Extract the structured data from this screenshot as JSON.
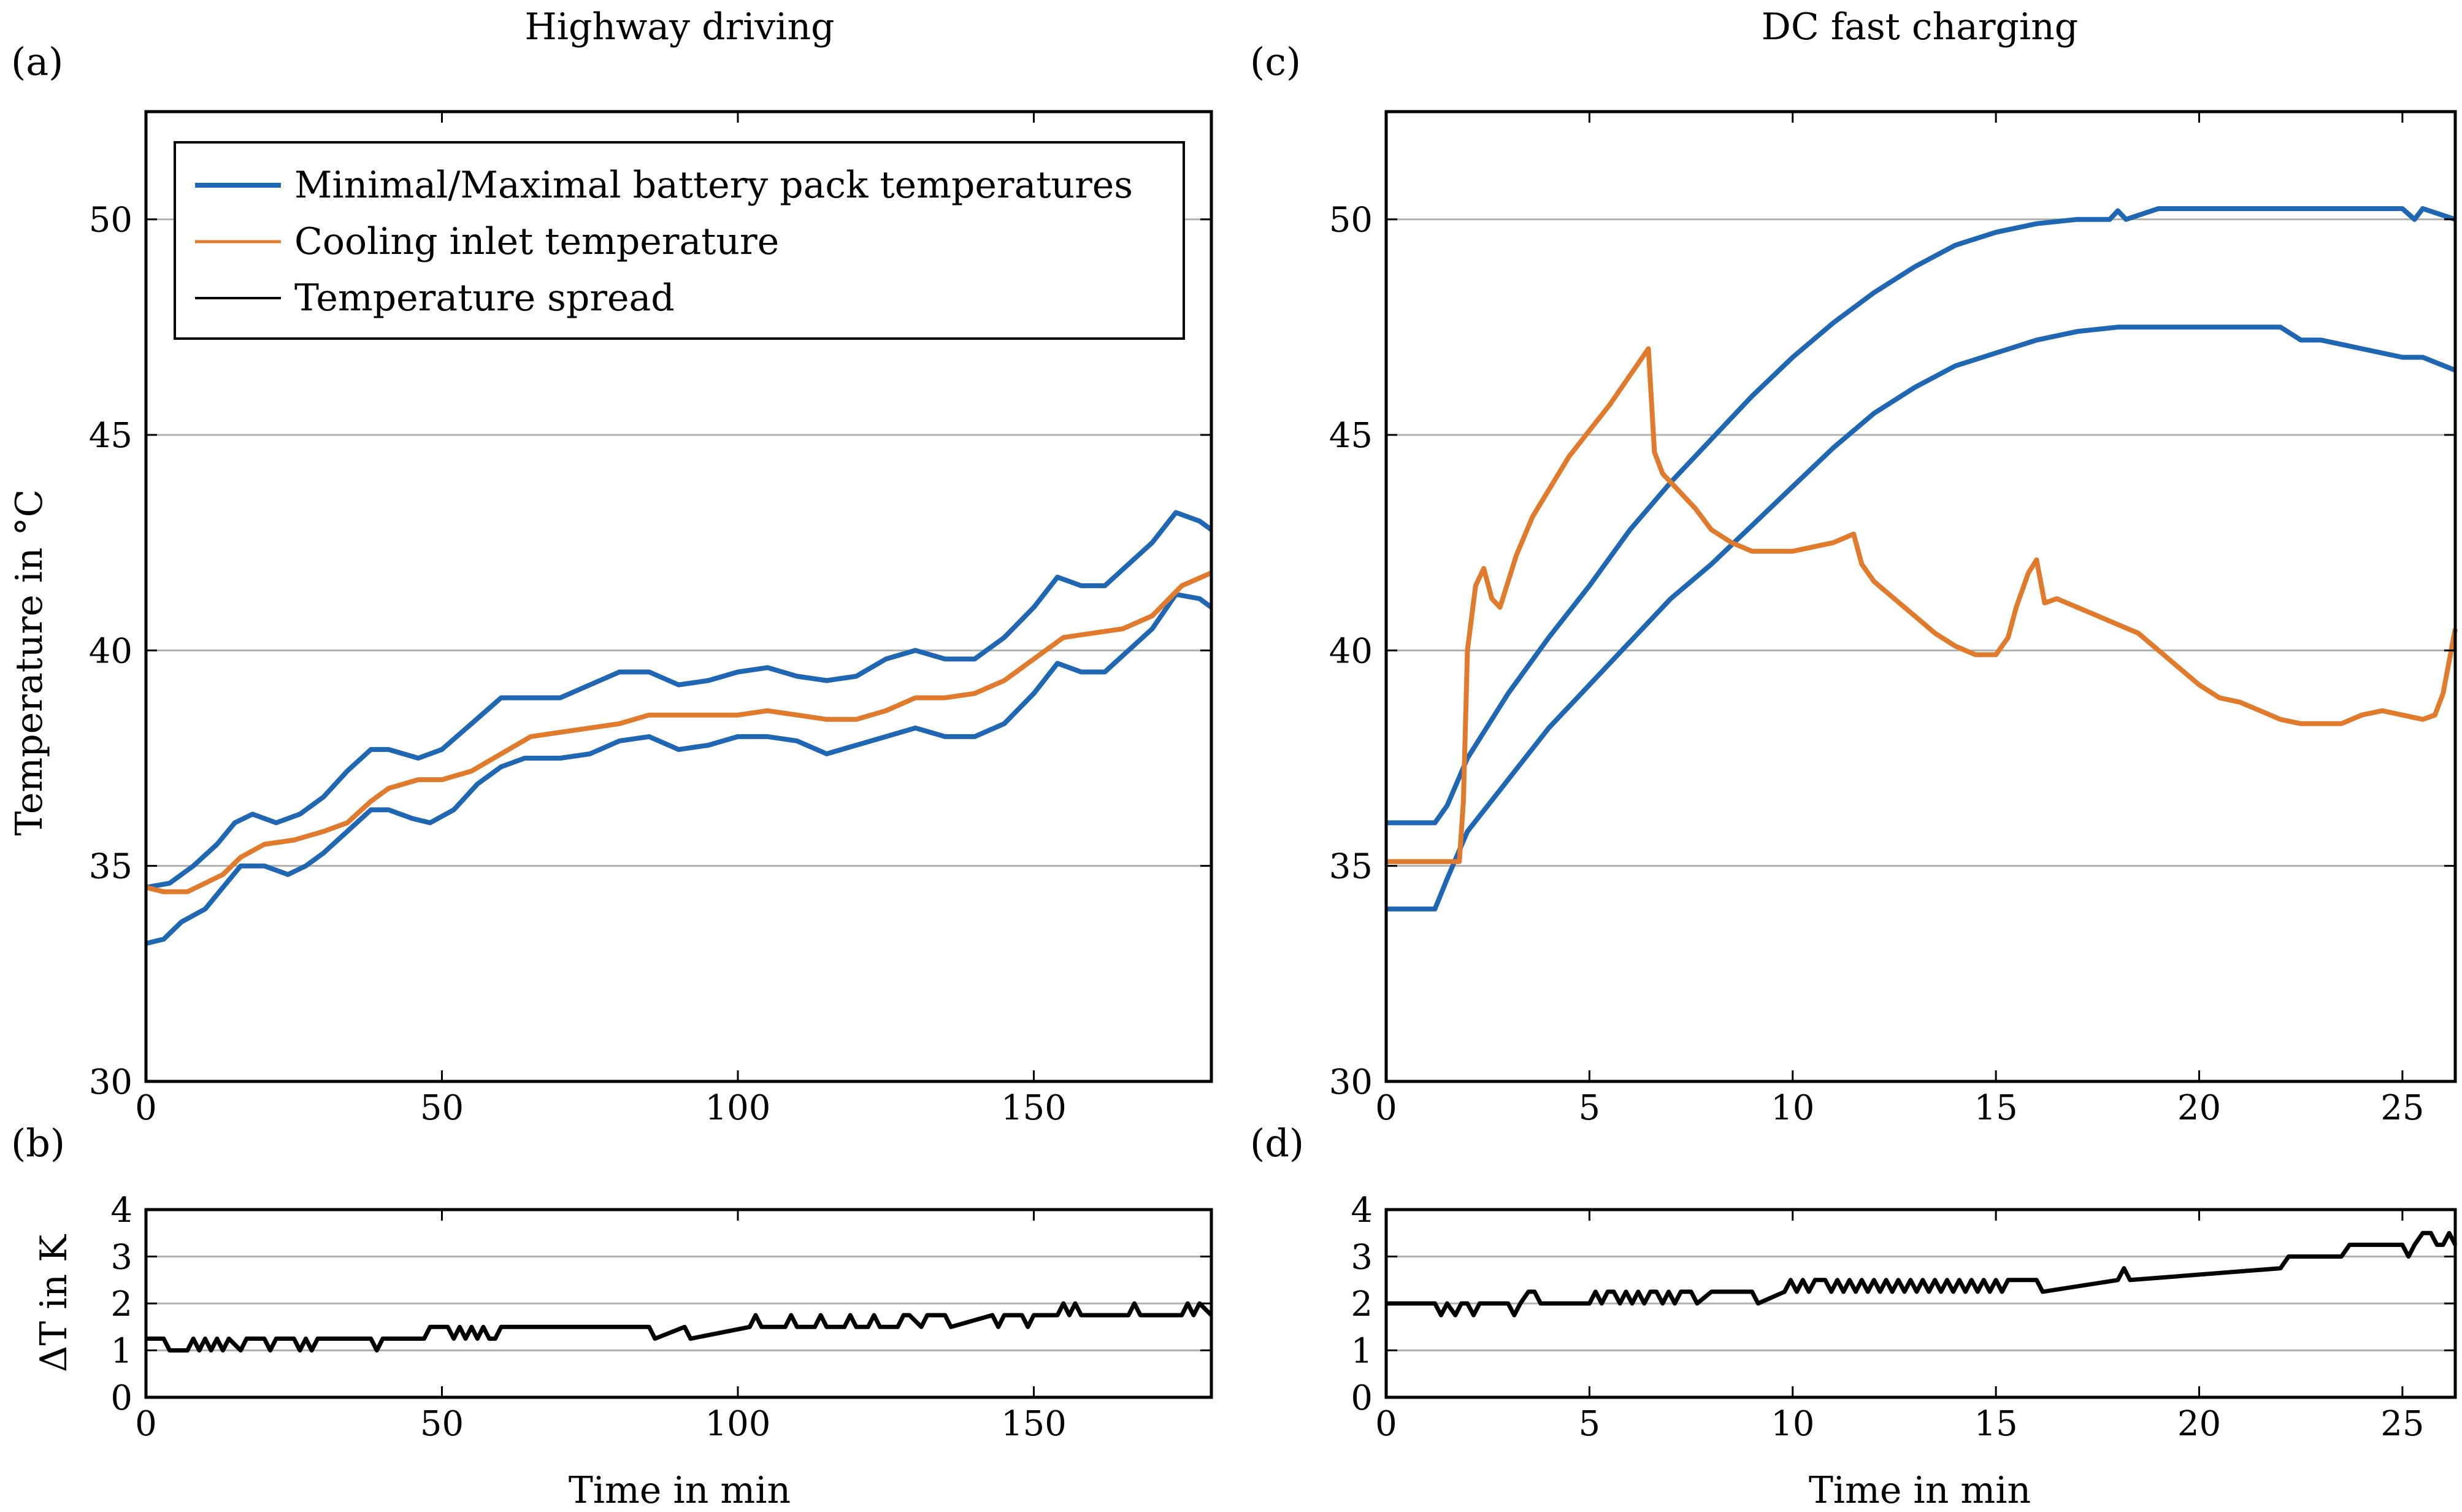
{
  "colors": {
    "blue": "#1f66b3",
    "orange": "#e07b2e",
    "black": "#000000",
    "grid": "#b0b0b0"
  },
  "chart_data": [
    {
      "id": "a",
      "panel_label": "(a)",
      "type": "line",
      "title": "Highway driving",
      "xlabel": "",
      "ylabel": "Temperature in °C",
      "xlim": [
        0,
        180
      ],
      "ylim": [
        30,
        52.5
      ],
      "xticks": [
        0,
        50,
        100,
        150
      ],
      "yticks": [
        30,
        35,
        40,
        45,
        50
      ],
      "grid": "horizontal",
      "legend_position": "top-left",
      "legend": [
        "Minimal/Maximal battery pack temperatures",
        "Cooling inlet temperature",
        "Temperature spread"
      ],
      "series": [
        {
          "name": "Maximal battery pack temperature",
          "color": "blue",
          "x": [
            0,
            4,
            8,
            12,
            15,
            18,
            22,
            26,
            30,
            34,
            38,
            41,
            46,
            50,
            55,
            60,
            64,
            70,
            75,
            80,
            85,
            90,
            95,
            100,
            105,
            110,
            115,
            120,
            125,
            130,
            135,
            140,
            145,
            150,
            154,
            158,
            162,
            166,
            170,
            174,
            178,
            180
          ],
          "y": [
            34.5,
            34.6,
            35.0,
            35.5,
            36.0,
            36.2,
            36.0,
            36.2,
            36.6,
            37.2,
            37.7,
            37.7,
            37.5,
            37.7,
            38.3,
            38.9,
            38.9,
            38.9,
            39.2,
            39.5,
            39.5,
            39.2,
            39.3,
            39.5,
            39.6,
            39.4,
            39.3,
            39.4,
            39.8,
            40.0,
            39.8,
            39.8,
            40.3,
            41.0,
            41.7,
            41.5,
            41.5,
            42.0,
            42.5,
            43.2,
            43.0,
            42.8
          ]
        },
        {
          "name": "Minimal battery pack temperature",
          "color": "blue",
          "x": [
            0,
            3,
            6,
            10,
            13,
            16,
            20,
            24,
            27,
            30,
            34,
            38,
            41,
            45,
            48,
            52,
            56,
            60,
            64,
            70,
            75,
            80,
            85,
            90,
            95,
            100,
            105,
            110,
            115,
            120,
            125,
            130,
            135,
            140,
            145,
            150,
            154,
            158,
            162,
            166,
            170,
            174,
            178,
            180
          ],
          "y": [
            33.2,
            33.3,
            33.7,
            34.0,
            34.5,
            35.0,
            35.0,
            34.8,
            35.0,
            35.3,
            35.8,
            36.3,
            36.3,
            36.1,
            36.0,
            36.3,
            36.9,
            37.3,
            37.5,
            37.5,
            37.6,
            37.9,
            38.0,
            37.7,
            37.8,
            38.0,
            38.0,
            37.9,
            37.6,
            37.8,
            38.0,
            38.2,
            38.0,
            38.0,
            38.3,
            39.0,
            39.7,
            39.5,
            39.5,
            40.0,
            40.5,
            41.3,
            41.2,
            41.0
          ]
        },
        {
          "name": "Cooling inlet temperature",
          "color": "orange",
          "x": [
            0,
            3,
            7,
            10,
            13,
            16,
            20,
            25,
            30,
            34,
            38,
            41,
            46,
            50,
            55,
            60,
            65,
            70,
            75,
            80,
            85,
            90,
            95,
            100,
            105,
            110,
            115,
            120,
            125,
            130,
            135,
            140,
            145,
            150,
            155,
            160,
            165,
            170,
            175,
            180
          ],
          "y": [
            34.5,
            34.4,
            34.4,
            34.6,
            34.8,
            35.2,
            35.5,
            35.6,
            35.8,
            36.0,
            36.5,
            36.8,
            37.0,
            37.0,
            37.2,
            37.6,
            38.0,
            38.1,
            38.2,
            38.3,
            38.5,
            38.5,
            38.5,
            38.5,
            38.6,
            38.5,
            38.4,
            38.4,
            38.6,
            38.9,
            38.9,
            39.0,
            39.3,
            39.8,
            40.3,
            40.4,
            40.5,
            40.8,
            41.5,
            41.8
          ]
        }
      ]
    },
    {
      "id": "b",
      "panel_label": "(b)",
      "type": "line",
      "title": "",
      "xlabel": "Time in min",
      "ylabel": "ΔT in K",
      "xlim": [
        0,
        180
      ],
      "ylim": [
        0,
        4
      ],
      "xticks": [
        0,
        50,
        100,
        150
      ],
      "yticks": [
        0,
        1,
        2,
        3,
        4
      ],
      "grid": "horizontal",
      "series": [
        {
          "name": "Temperature spread",
          "color": "black",
          "x": [
            0,
            3,
            4,
            7,
            8,
            9,
            10,
            11,
            12,
            13,
            14,
            16,
            17,
            20,
            21,
            22,
            25,
            26,
            27,
            28,
            29,
            32,
            38,
            39,
            40,
            47,
            48,
            51,
            52,
            53,
            54,
            55,
            56,
            57,
            58,
            59,
            60,
            85,
            86,
            91,
            92,
            102,
            103,
            104,
            108,
            109,
            110,
            113,
            114,
            115,
            118,
            119,
            120,
            122,
            123,
            124,
            127,
            128,
            129,
            131,
            132,
            133,
            135,
            136,
            143,
            144,
            145,
            148,
            149,
            150,
            154,
            155,
            156,
            157,
            158,
            166,
            167,
            168,
            175,
            176,
            177,
            178,
            180
          ],
          "y": [
            1.25,
            1.25,
            1.0,
            1.0,
            1.25,
            1.0,
            1.25,
            1.0,
            1.25,
            1.0,
            1.25,
            1.0,
            1.25,
            1.25,
            1.0,
            1.25,
            1.25,
            1.0,
            1.25,
            1.0,
            1.25,
            1.25,
            1.25,
            1.0,
            1.25,
            1.25,
            1.5,
            1.5,
            1.25,
            1.5,
            1.25,
            1.5,
            1.25,
            1.5,
            1.25,
            1.25,
            1.5,
            1.5,
            1.25,
            1.5,
            1.25,
            1.5,
            1.75,
            1.5,
            1.5,
            1.75,
            1.5,
            1.5,
            1.75,
            1.5,
            1.5,
            1.75,
            1.5,
            1.5,
            1.75,
            1.5,
            1.5,
            1.75,
            1.75,
            1.5,
            1.75,
            1.75,
            1.75,
            1.5,
            1.75,
            1.5,
            1.75,
            1.75,
            1.5,
            1.75,
            1.75,
            2.0,
            1.75,
            2.0,
            1.75,
            1.75,
            2.0,
            1.75,
            1.75,
            2.0,
            1.75,
            2.0,
            1.75
          ]
        }
      ]
    },
    {
      "id": "c",
      "panel_label": "(c)",
      "type": "line",
      "title": "DC fast charging",
      "xlabel": "",
      "ylabel": "",
      "xlim": [
        0,
        26.3
      ],
      "ylim": [
        30,
        52.5
      ],
      "xticks": [
        0,
        5,
        10,
        15,
        20,
        25
      ],
      "yticks": [
        30,
        35,
        40,
        45,
        50
      ],
      "grid": "horizontal",
      "series": [
        {
          "name": "Maximal battery pack temperature",
          "color": "blue",
          "x": [
            0,
            1.2,
            1.5,
            2.0,
            3.0,
            4.0,
            5.0,
            6.0,
            7.0,
            8.0,
            9.0,
            10.0,
            11.0,
            12.0,
            13.0,
            14.0,
            15.0,
            16.0,
            17.0,
            17.8,
            18.0,
            18.2,
            19.0,
            20.0,
            21.0,
            22.0,
            23.0,
            24.0,
            25.0,
            25.3,
            25.5,
            26.3
          ],
          "y": [
            36.0,
            36.0,
            36.4,
            37.5,
            39.0,
            40.3,
            41.5,
            42.8,
            43.9,
            44.9,
            45.9,
            46.8,
            47.6,
            48.3,
            48.9,
            49.4,
            49.7,
            49.9,
            50.0,
            50.0,
            50.2,
            50.0,
            50.25,
            50.25,
            50.25,
            50.25,
            50.25,
            50.25,
            50.25,
            50.0,
            50.25,
            50.0
          ]
        },
        {
          "name": "Minimal battery pack temperature",
          "color": "blue",
          "x": [
            0,
            1.2,
            1.5,
            2.0,
            3.0,
            4.0,
            5.0,
            6.0,
            7.0,
            8.0,
            9.0,
            10.0,
            11.0,
            12.0,
            13.0,
            14.0,
            15.0,
            16.0,
            17.0,
            18.0,
            20.0,
            22.0,
            22.5,
            23.0,
            24.0,
            25.0,
            25.5,
            26.3
          ],
          "y": [
            34.0,
            34.0,
            34.7,
            35.8,
            37.0,
            38.2,
            39.2,
            40.2,
            41.2,
            42.0,
            42.9,
            43.8,
            44.7,
            45.5,
            46.1,
            46.6,
            46.9,
            47.2,
            47.4,
            47.5,
            47.5,
            47.5,
            47.2,
            47.2,
            47.0,
            46.8,
            46.8,
            46.5
          ]
        },
        {
          "name": "Cooling inlet temperature",
          "color": "orange",
          "x": [
            0,
            1.8,
            1.9,
            2.0,
            2.2,
            2.4,
            2.6,
            2.8,
            3.2,
            3.6,
            4.5,
            5.5,
            6.45,
            6.6,
            6.8,
            7.2,
            7.6,
            8.0,
            8.5,
            9.0,
            9.5,
            10.0,
            11.0,
            11.5,
            11.7,
            12.0,
            12.5,
            13.0,
            13.5,
            14.0,
            14.5,
            15.0,
            15.3,
            15.5,
            15.8,
            16.0,
            16.2,
            16.5,
            17.0,
            17.5,
            18.0,
            18.5,
            19.0,
            19.5,
            20.0,
            20.5,
            21.0,
            21.5,
            22.0,
            22.5,
            23.0,
            23.5,
            24.0,
            24.5,
            25.0,
            25.5,
            25.8,
            26.0,
            26.3
          ],
          "y": [
            35.1,
            35.1,
            36.5,
            40.0,
            41.5,
            41.9,
            41.2,
            41.0,
            42.2,
            43.1,
            44.5,
            45.7,
            47.0,
            44.6,
            44.1,
            43.7,
            43.3,
            42.8,
            42.5,
            42.3,
            42.3,
            42.3,
            42.5,
            42.7,
            42.0,
            41.6,
            41.2,
            40.8,
            40.4,
            40.1,
            39.9,
            39.9,
            40.3,
            41.0,
            41.8,
            42.1,
            41.1,
            41.2,
            41.0,
            40.8,
            40.6,
            40.4,
            40.0,
            39.6,
            39.2,
            38.9,
            38.8,
            38.6,
            38.4,
            38.3,
            38.3,
            38.3,
            38.5,
            38.6,
            38.5,
            38.4,
            38.5,
            39.0,
            40.5
          ]
        }
      ]
    },
    {
      "id": "d",
      "panel_label": "(d)",
      "type": "line",
      "title": "",
      "xlabel": "Time in min",
      "ylabel": "",
      "xlim": [
        0,
        26.3
      ],
      "ylim": [
        0,
        4
      ],
      "xticks": [
        0,
        5,
        10,
        15,
        20,
        25
      ],
      "yticks": [
        0,
        1,
        2,
        3,
        4
      ],
      "grid": "horizontal",
      "series": [
        {
          "name": "Temperature spread",
          "color": "black",
          "x": [
            0,
            1.2,
            1.35,
            1.5,
            1.7,
            1.85,
            2.0,
            2.15,
            2.3,
            2.5,
            3.0,
            3.15,
            3.3,
            3.5,
            3.65,
            3.8,
            5.0,
            5.15,
            5.3,
            5.45,
            5.6,
            5.75,
            5.9,
            6.05,
            6.2,
            6.35,
            6.5,
            6.65,
            6.8,
            6.95,
            7.1,
            7.25,
            7.5,
            7.65,
            8.0,
            9.0,
            9.15,
            9.8,
            9.95,
            10.1,
            10.25,
            10.4,
            10.55,
            10.8,
            10.95,
            11.1,
            11.25,
            11.4,
            11.55,
            11.7,
            11.85,
            12.0,
            12.15,
            12.3,
            12.45,
            12.6,
            12.75,
            12.9,
            13.05,
            13.2,
            13.35,
            13.5,
            13.65,
            13.8,
            13.95,
            14.1,
            14.25,
            14.4,
            14.55,
            14.7,
            14.85,
            15.0,
            15.15,
            15.3,
            15.45,
            16.0,
            16.15,
            18.0,
            18.15,
            18.3,
            22.0,
            22.2,
            23.5,
            23.7,
            25.0,
            25.15,
            25.3,
            25.5,
            25.7,
            25.85,
            26.0,
            26.15,
            26.3
          ],
          "y": [
            2.0,
            2.0,
            1.75,
            2.0,
            1.75,
            2.0,
            2.0,
            1.75,
            2.0,
            2.0,
            2.0,
            1.75,
            2.0,
            2.25,
            2.25,
            2.0,
            2.0,
            2.25,
            2.0,
            2.25,
            2.25,
            2.0,
            2.25,
            2.0,
            2.25,
            2.0,
            2.25,
            2.25,
            2.0,
            2.25,
            2.0,
            2.25,
            2.25,
            2.0,
            2.25,
            2.25,
            2.0,
            2.25,
            2.5,
            2.25,
            2.5,
            2.25,
            2.5,
            2.5,
            2.25,
            2.5,
            2.25,
            2.5,
            2.25,
            2.5,
            2.25,
            2.5,
            2.25,
            2.5,
            2.25,
            2.5,
            2.25,
            2.5,
            2.25,
            2.5,
            2.25,
            2.5,
            2.25,
            2.5,
            2.25,
            2.5,
            2.25,
            2.5,
            2.25,
            2.5,
            2.25,
            2.5,
            2.25,
            2.5,
            2.5,
            2.5,
            2.25,
            2.5,
            2.75,
            2.5,
            2.75,
            3.0,
            3.0,
            3.25,
            3.25,
            3.0,
            3.25,
            3.5,
            3.5,
            3.25,
            3.25,
            3.5,
            3.25
          ]
        }
      ]
    }
  ]
}
